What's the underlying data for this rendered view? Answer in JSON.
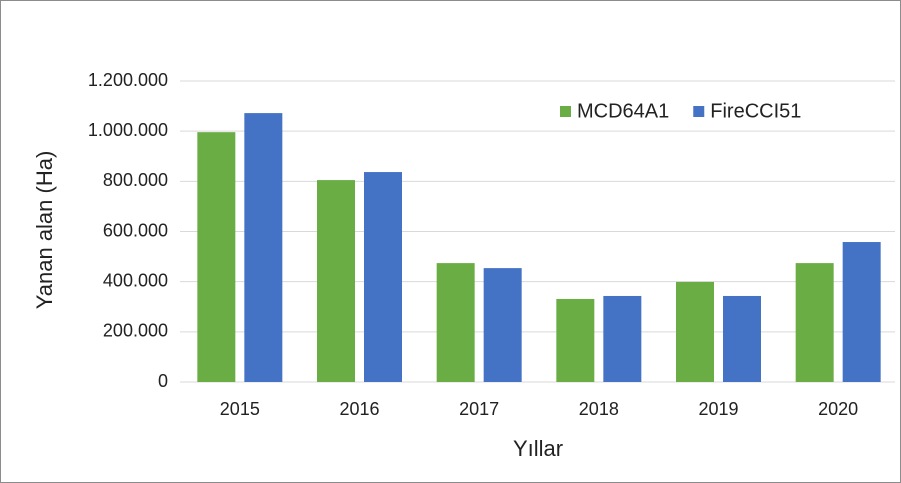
{
  "chart_data": {
    "type": "bar",
    "x_label": "Yıllar",
    "y_label": "Yanan alan (Ha)",
    "categories": [
      "2015",
      "2016",
      "2017",
      "2018",
      "2019",
      "2020"
    ],
    "series": [
      {
        "name": "MCD64A1",
        "color": "#6aad45",
        "values": [
          996000,
          805000,
          474000,
          331000,
          399000,
          474000
        ]
      },
      {
        "name": "FireCCI51",
        "color": "#4472c4",
        "values": [
          1072000,
          837000,
          454000,
          343000,
          343000,
          558000
        ]
      }
    ],
    "ylim": [
      0,
      1200000
    ],
    "yticks": [
      0,
      {
        "value": 200000,
        "label": "200.000"
      },
      {
        "value": 400000,
        "label": "400.000"
      },
      {
        "value": 600000,
        "label": "600.000"
      },
      {
        "value": 800000,
        "label": "800.000"
      },
      {
        "value": 1000000,
        "label": "1.000.000"
      },
      {
        "value": 1200000,
        "label": "1.200.000"
      }
    ],
    "grid": true,
    "legend": "top-right"
  }
}
